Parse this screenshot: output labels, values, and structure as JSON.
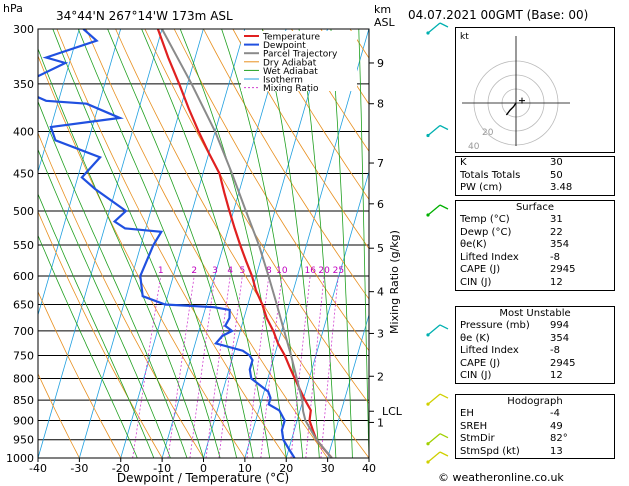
{
  "header": {
    "hpa_label": "hPa",
    "location": "34°44'N  267°14'W  173m  ASL",
    "km_label": "km",
    "asl_label": "ASL",
    "date": "04.07.2021  00GMT  (Base: 00)"
  },
  "chart_data": {
    "type": "skew-t",
    "xlabel": "Dewpoint / Temperature (°C)",
    "ylabel_right": "Mixing Ratio (g/kg)",
    "pressure_ticks": [
      300,
      350,
      400,
      450,
      500,
      550,
      600,
      650,
      700,
      750,
      800,
      850,
      900,
      950,
      1000
    ],
    "temp_ticks": [
      -40,
      -30,
      -20,
      -10,
      0,
      10,
      20,
      30,
      40
    ],
    "xlim": [
      -40,
      40
    ],
    "ylim": [
      1000,
      300
    ],
    "km_ticks": [
      {
        "km": "1",
        "p": 905
      },
      {
        "km": "2",
        "p": 795
      },
      {
        "km": "3",
        "p": 705
      },
      {
        "km": "4",
        "p": 627
      },
      {
        "km": "5",
        "p": 555
      },
      {
        "km": "6",
        "p": 490
      },
      {
        "km": "7",
        "p": 437
      },
      {
        "km": "8",
        "p": 370
      },
      {
        "km": "9",
        "p": 330
      }
    ],
    "lcl": {
      "label": "LCL",
      "p": 877
    },
    "mixing_ratio_labels": [
      "1",
      "2",
      "3",
      "4",
      "5",
      "8",
      "10",
      "16",
      "20",
      "25"
    ],
    "mixing_ratio_values": [
      1,
      2,
      3,
      4,
      5,
      8,
      10,
      16,
      20,
      25
    ],
    "legend": [
      "Temperature",
      "Dewpoint",
      "Parcel Trajectory",
      "Dry Adiabat",
      "Wet Adiabat",
      "Isotherm",
      "Mixing Ratio"
    ],
    "series": [
      {
        "name": "Temperature",
        "color": "#e02020",
        "points": [
          [
            1000,
            31
          ],
          [
            975,
            28.5
          ],
          [
            950,
            26
          ],
          [
            925,
            24.5
          ],
          [
            900,
            23
          ],
          [
            875,
            22.6
          ],
          [
            850,
            20.5
          ],
          [
            825,
            18.5
          ],
          [
            800,
            16.5
          ],
          [
            775,
            14.5
          ],
          [
            750,
            12.5
          ],
          [
            725,
            10
          ],
          [
            700,
            8
          ],
          [
            675,
            5.5
          ],
          [
            650,
            3.5
          ],
          [
            625,
            1
          ],
          [
            600,
            -1
          ],
          [
            575,
            -3.5
          ],
          [
            550,
            -6
          ],
          [
            525,
            -8.5
          ],
          [
            500,
            -11
          ],
          [
            475,
            -13.5
          ],
          [
            450,
            -16
          ],
          [
            425,
            -20
          ],
          [
            400,
            -24
          ],
          [
            375,
            -28
          ],
          [
            350,
            -32
          ],
          [
            325,
            -36.5
          ],
          [
            300,
            -41
          ]
        ]
      },
      {
        "name": "Dewpoint",
        "color": "#2050e0",
        "points": [
          [
            1000,
            22
          ],
          [
            975,
            20
          ],
          [
            950,
            18
          ],
          [
            925,
            17
          ],
          [
            900,
            17
          ],
          [
            875,
            15
          ],
          [
            860,
            12
          ],
          [
            845,
            12
          ],
          [
            830,
            11
          ],
          [
            800,
            6
          ],
          [
            780,
            5
          ],
          [
            760,
            5
          ],
          [
            750,
            4
          ],
          [
            740,
            2
          ],
          [
            725,
            -5
          ],
          [
            710,
            -4
          ],
          [
            700,
            -2
          ],
          [
            690,
            -4
          ],
          [
            675,
            -3.5
          ],
          [
            660,
            -4
          ],
          [
            655,
            -8
          ],
          [
            650,
            -20
          ],
          [
            635,
            -26
          ],
          [
            600,
            -28
          ],
          [
            550,
            -27
          ],
          [
            530,
            -26
          ],
          [
            525,
            -35
          ],
          [
            515,
            -38
          ],
          [
            500,
            -36
          ],
          [
            470,
            -45
          ],
          [
            455,
            -49
          ],
          [
            430,
            -46
          ],
          [
            410,
            -58
          ],
          [
            395,
            -60
          ],
          [
            385,
            -44
          ],
          [
            380,
            -47
          ],
          [
            370,
            -53
          ],
          [
            367,
            -63
          ],
          [
            362,
            -66
          ],
          [
            350,
            -70
          ],
          [
            330,
            -61
          ],
          [
            325,
            -66
          ],
          [
            310,
            -55
          ],
          [
            300,
            -59
          ]
        ]
      },
      {
        "name": "Parcel Trajectory",
        "color": "#8a8a8a",
        "points": [
          [
            1000,
            31
          ],
          [
            950,
            26
          ],
          [
            900,
            22
          ],
          [
            877,
            20.8
          ],
          [
            850,
            19.8
          ],
          [
            800,
            17
          ],
          [
            750,
            14
          ],
          [
            700,
            10.6
          ],
          [
            650,
            7
          ],
          [
            600,
            3
          ],
          [
            550,
            -1.5
          ],
          [
            500,
            -7
          ],
          [
            450,
            -13
          ],
          [
            400,
            -20
          ],
          [
            350,
            -29
          ],
          [
            300,
            -40
          ]
        ]
      }
    ],
    "wind_barbs": [
      {
        "p": 300,
        "color": "#00b0b0"
      },
      {
        "p": 400,
        "color": "#00b0b0"
      },
      {
        "p": 500,
        "color": "#00b000"
      },
      {
        "p": 700,
        "color": "#00b0b0"
      },
      {
        "p": 850,
        "color": "#d0d000"
      },
      {
        "p": 950,
        "color": "#a0d000"
      },
      {
        "p": 1000,
        "color": "#d0d000"
      }
    ],
    "colors": {
      "dry_adiabat": "#e89020",
      "wet_adiabat": "#20a020",
      "isotherm": "#20a0e0",
      "mixing_ratio": "#d040d0"
    }
  },
  "hodograph": {
    "unit": "kt",
    "ring_labels": [
      "20",
      "40"
    ],
    "hodo_points": [
      [
        0,
        0
      ],
      [
        -2,
        -3
      ],
      [
        -5,
        -6
      ],
      [
        -8,
        -10
      ]
    ],
    "storm_motion": [
      5,
      2
    ]
  },
  "indices": {
    "rows": [
      {
        "label": "K",
        "value": "30"
      },
      {
        "label": "Totals Totals",
        "value": "50"
      },
      {
        "label": "PW (cm)",
        "value": "3.48"
      }
    ]
  },
  "surface": {
    "title": "Surface",
    "rows": [
      {
        "label": "Temp (°C)",
        "value": "31"
      },
      {
        "label": "Dewp (°C)",
        "value": "22"
      },
      {
        "label": "θe(K)",
        "value": "354"
      },
      {
        "label": "Lifted Index",
        "value": "-8"
      },
      {
        "label": "CAPE (J)",
        "value": "2945"
      },
      {
        "label": "CIN (J)",
        "value": "12"
      }
    ]
  },
  "most_unstable": {
    "title": "Most Unstable",
    "rows": [
      {
        "label": "Pressure (mb)",
        "value": "994"
      },
      {
        "label": "θe (K)",
        "value": "354"
      },
      {
        "label": "Lifted Index",
        "value": "-8"
      },
      {
        "label": "CAPE (J)",
        "value": "2945"
      },
      {
        "label": "CIN (J)",
        "value": "12"
      }
    ]
  },
  "hodograph_table": {
    "title": "Hodograph",
    "rows": [
      {
        "label": "EH",
        "value": "-4"
      },
      {
        "label": "SREH",
        "value": "49"
      },
      {
        "label": "StmDir",
        "value": "82°"
      },
      {
        "label": "StmSpd (kt)",
        "value": "13"
      }
    ]
  },
  "footer": {
    "copyright": "© weatheronline.co.uk"
  }
}
